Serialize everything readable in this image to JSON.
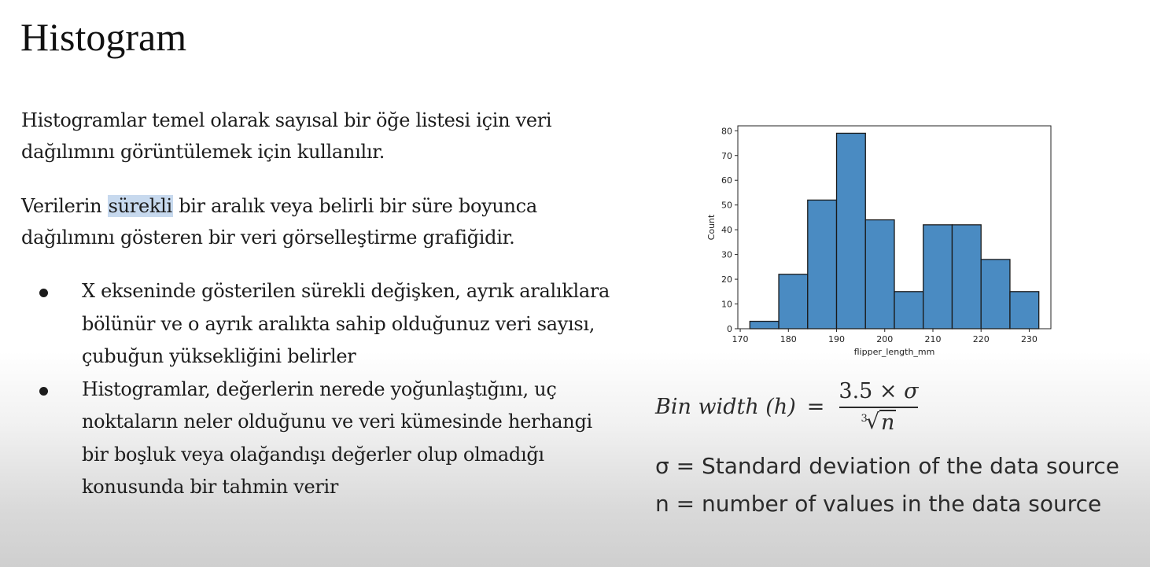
{
  "slide": {
    "title": "Histogram",
    "paragraph1": "Histogramlar temel olarak sayısal bir öğe listesi için veri dağılımını görüntülemek için kullanılır.",
    "paragraph2_before": "Verilerin ",
    "paragraph2_highlight": "sürekli",
    "paragraph2_after": " bir aralık veya belirli bir süre boyunca dağılımını gösteren bir veri görselleştirme grafiğidir.",
    "bullets": [
      "X ekseninde gösterilen sürekli değişken, ayrık aralıklara bölünür ve o ayrık aralıkta sahip olduğunuz veri sayısı, çubuğun yüksekliğini belirler",
      "Histogramlar, değerlerin nerede yoğunlaştığını, uç noktaların neler olduğunu ve veri kümesinde herhangi bir boşluk veya olağandışı değerler olup olmadığı konusunda bir tahmin verir"
    ],
    "highlight_color": "#c7d9ee"
  },
  "formula": {
    "lhs": "Bin width (h)",
    "equals": "=",
    "numerator": "3.5 × ",
    "numerator_symbol": "σ",
    "root_index": "3",
    "radical": "√",
    "denominator": "n",
    "def_sigma": "σ = Standard deviation of the data source",
    "def_n": "n = number of values in the data source"
  },
  "chart_data": {
    "type": "bar",
    "xlabel": "flipper_length_mm",
    "ylabel": "Count",
    "xlim": [
      169.5,
      234.5
    ],
    "ylim": [
      0,
      82
    ],
    "xticks": [
      170,
      180,
      190,
      200,
      210,
      220,
      230
    ],
    "xtick_labels": [
      "170",
      "180",
      "190",
      "200",
      "210",
      "220",
      "230"
    ],
    "yticks": [
      0,
      10,
      20,
      30,
      40,
      50,
      60,
      70,
      80
    ],
    "bins": [
      {
        "x0": 172,
        "x1": 178,
        "count": 3
      },
      {
        "x0": 178,
        "x1": 184,
        "count": 22
      },
      {
        "x0": 184,
        "x1": 190,
        "count": 52
      },
      {
        "x0": 190,
        "x1": 196,
        "count": 79
      },
      {
        "x0": 196,
        "x1": 202,
        "count": 44
      },
      {
        "x0": 202,
        "x1": 208,
        "count": 15
      },
      {
        "x0": 208,
        "x1": 214,
        "count": 42
      },
      {
        "x0": 214,
        "x1": 220,
        "count": 42
      },
      {
        "x0": 220,
        "x1": 226,
        "count": 28
      },
      {
        "x0": 226,
        "x1": 232,
        "count": 15
      }
    ],
    "bar_color": "#4a8bc2",
    "edge_color": "#1a1a1a",
    "grid": false
  }
}
